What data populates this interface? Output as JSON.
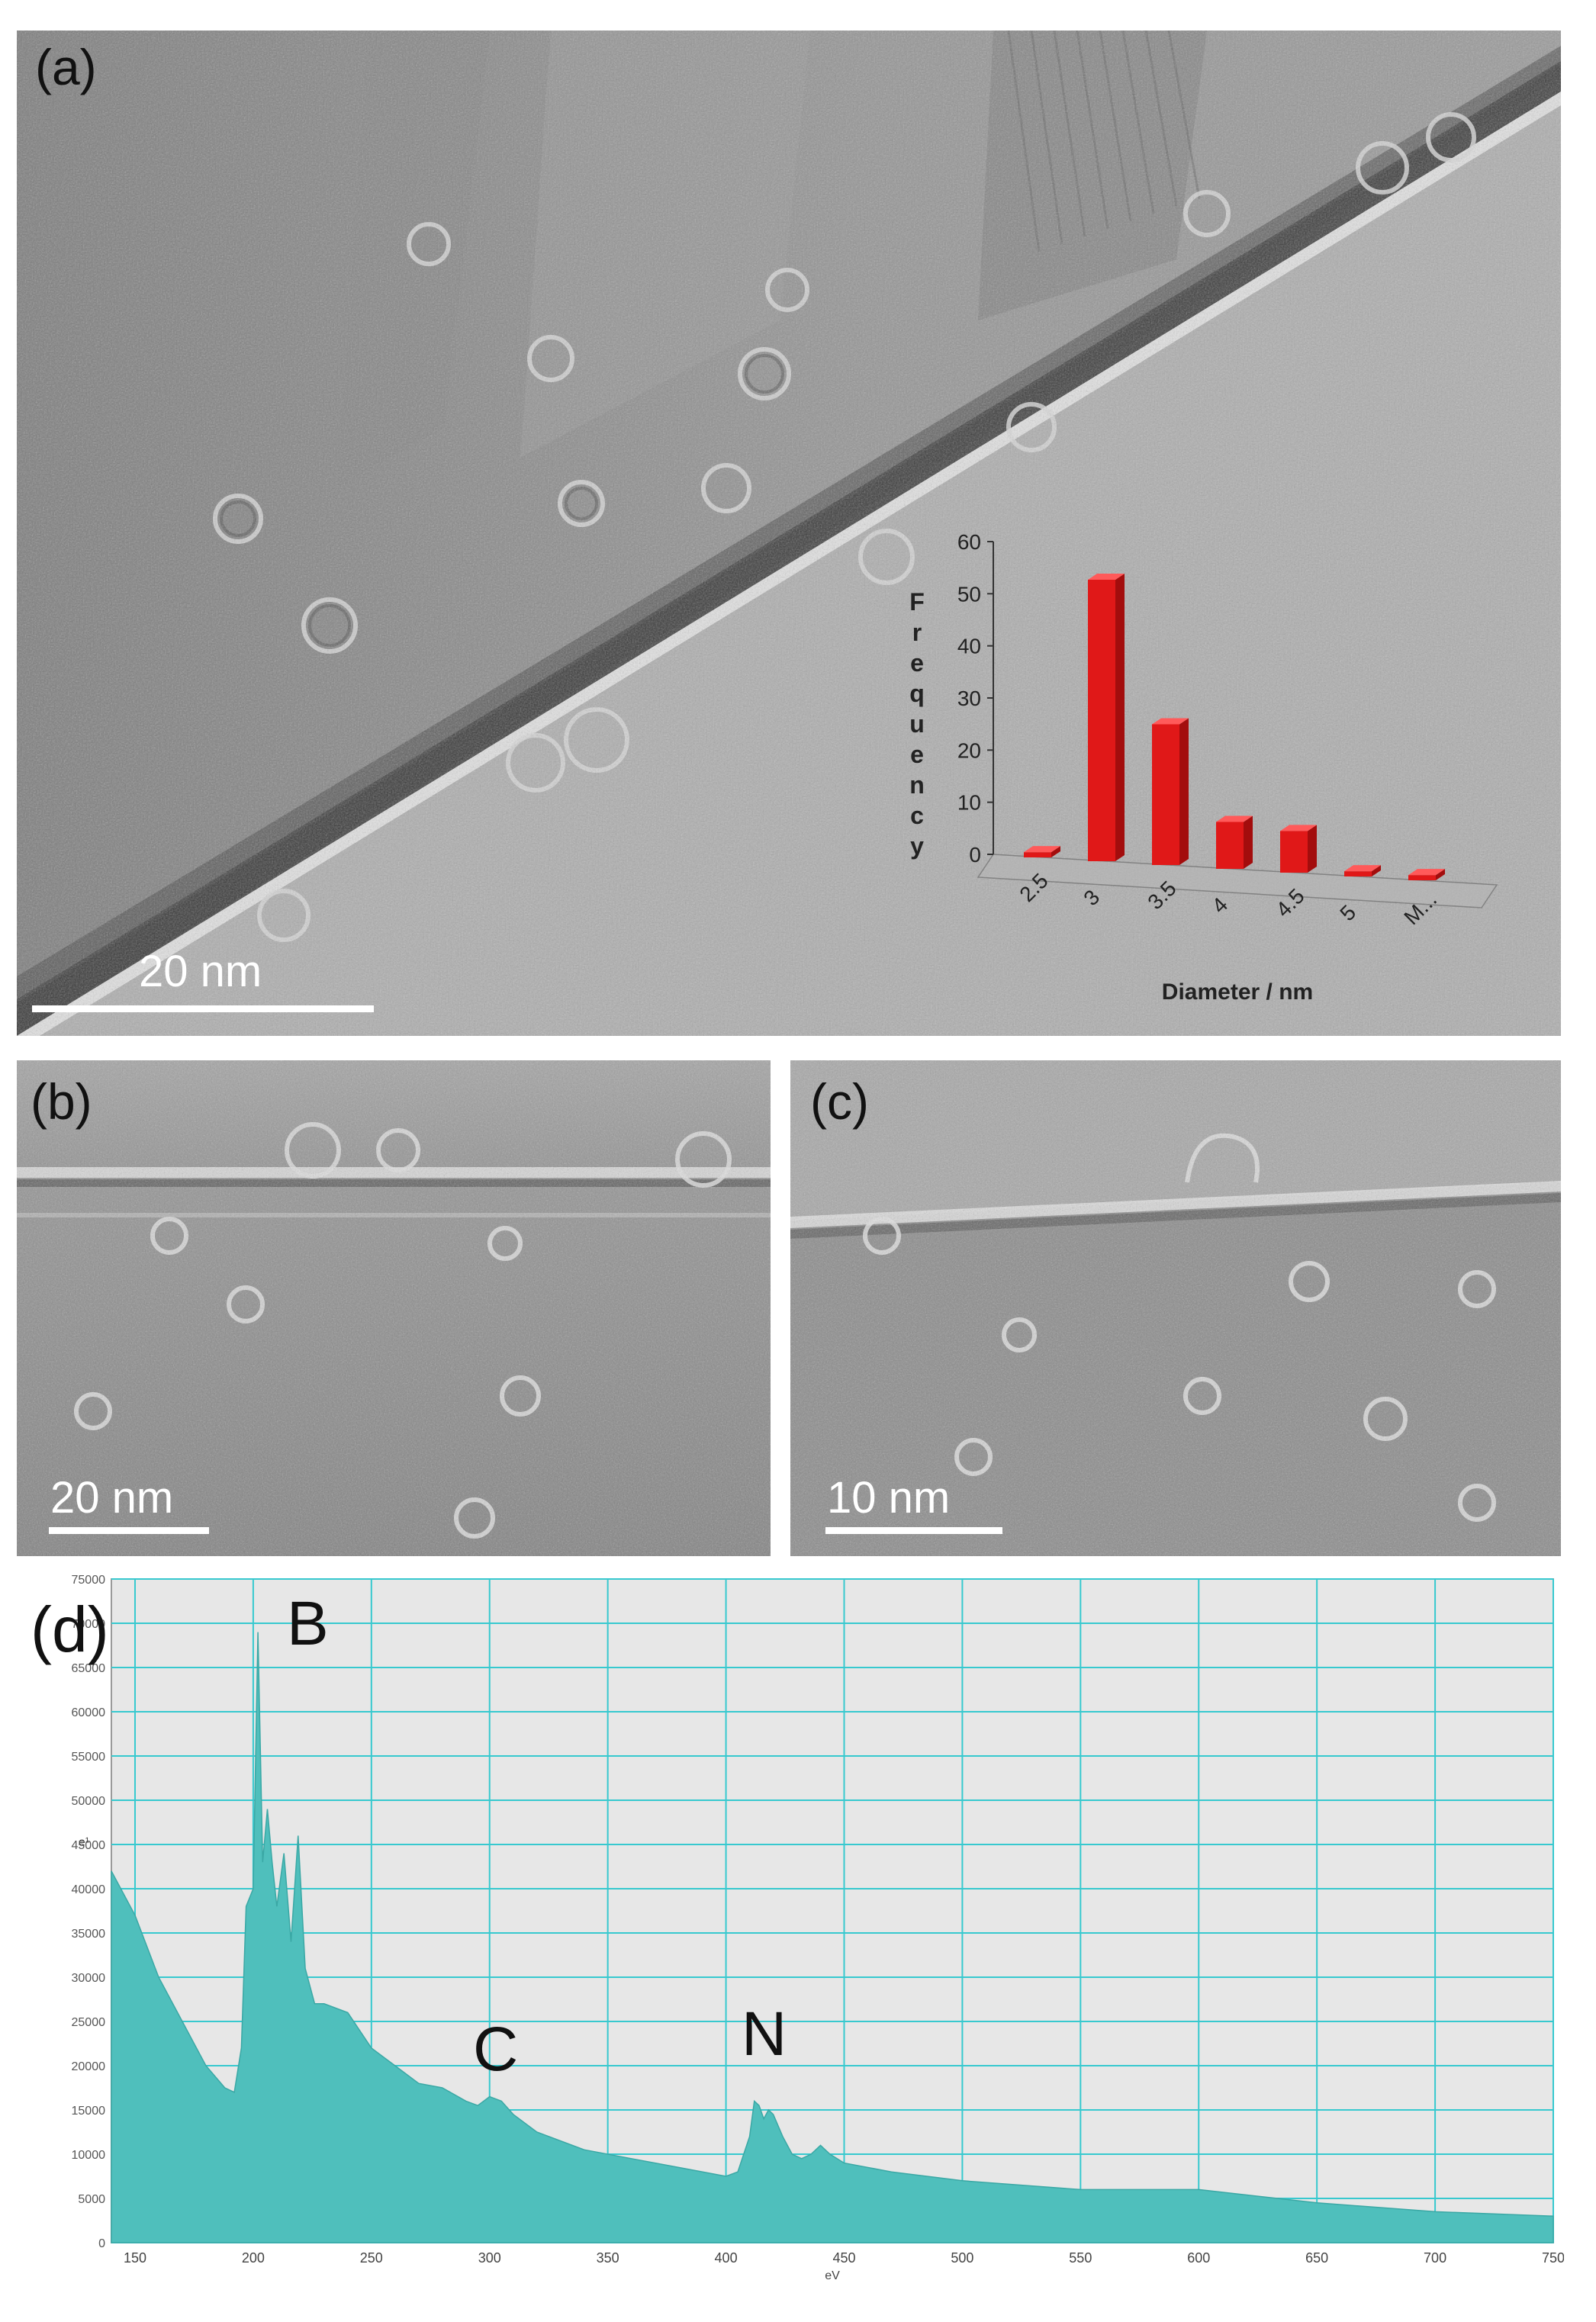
{
  "panels": {
    "a": {
      "label": "(a)",
      "scale_label": "20 nm",
      "inset": {
        "ylabel": "Frequency",
        "xlabel": "Diameter / nm"
      }
    },
    "b": {
      "label": "(b)",
      "scale_label": "20 nm"
    },
    "c": {
      "label": "(c)",
      "scale_label": "10 nm"
    },
    "d": {
      "label": "(d)",
      "peaks": {
        "B": "B",
        "C": "C",
        "N": "N"
      },
      "xunit": "eV",
      "yunit": "e¹"
    }
  },
  "colors": {
    "bar_red": "#e01818",
    "spectrum_fill": "#4fbfbc",
    "grid": "#37c9cf",
    "plot_bg": "#e7e7e7"
  },
  "chart_data": [
    {
      "type": "bar",
      "title": "",
      "xlabel": "Diameter / nm",
      "ylabel": "Frequency",
      "categories": [
        "2.5",
        "3",
        "3.5",
        "4",
        "4.5",
        "5",
        "M..."
      ],
      "values": [
        1,
        54,
        27,
        9,
        8,
        1,
        1
      ],
      "ylim": [
        0,
        60
      ],
      "yticks": [
        0,
        10,
        20,
        30,
        40,
        50,
        60
      ],
      "grid": false
    },
    {
      "type": "area",
      "title": "",
      "xlabel": "eV",
      "ylabel": "e¹",
      "xlim": [
        140,
        750
      ],
      "ylim": [
        0,
        75000
      ],
      "xticks": [
        150,
        200,
        250,
        300,
        350,
        400,
        450,
        500,
        550,
        600,
        650,
        700,
        750
      ],
      "yticks": [
        0,
        5000,
        10000,
        15000,
        20000,
        25000,
        30000,
        35000,
        40000,
        45000,
        50000,
        55000,
        60000,
        65000,
        70000,
        75000
      ],
      "grid": true,
      "x": [
        140,
        150,
        160,
        170,
        180,
        188,
        192,
        195,
        197,
        200,
        202,
        204,
        206,
        208,
        210,
        213,
        216,
        219,
        222,
        226,
        230,
        240,
        250,
        260,
        270,
        280,
        290,
        295,
        300,
        305,
        310,
        320,
        340,
        360,
        380,
        400,
        405,
        410,
        412,
        414,
        416,
        418,
        420,
        424,
        428,
        432,
        436,
        440,
        444,
        450,
        470,
        500,
        550,
        600,
        650,
        700,
        750
      ],
      "y": [
        42000,
        37000,
        30000,
        25000,
        20000,
        17500,
        17000,
        22000,
        38000,
        40000,
        69000,
        43000,
        49000,
        43000,
        38000,
        44000,
        34000,
        46000,
        31000,
        27000,
        27000,
        26000,
        22000,
        20000,
        18000,
        17500,
        16000,
        15500,
        16500,
        16000,
        14500,
        12500,
        10500,
        9500,
        8500,
        7500,
        8000,
        12000,
        16000,
        15500,
        14000,
        15000,
        14500,
        12000,
        10000,
        9500,
        10000,
        11000,
        10000,
        9000,
        8000,
        7000,
        6000,
        6000,
        4500,
        3500,
        3000
      ]
    }
  ]
}
